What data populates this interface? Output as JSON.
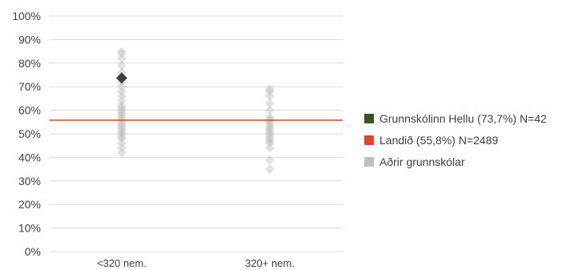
{
  "chart_data": {
    "type": "scatter",
    "categories": [
      "<320 nem.",
      "320+ nem."
    ],
    "yticks": [
      "0%",
      "10%",
      "20%",
      "30%",
      "40%",
      "50%",
      "60%",
      "70%",
      "80%",
      "90%",
      "100%"
    ],
    "ylim": [
      0,
      100
    ],
    "grid": true,
    "legend_position": "right",
    "reference_line": {
      "value": 55.8,
      "color": "#e0452a"
    },
    "highlight": {
      "category": "<320 nem.",
      "value": 73.7,
      "color": "#404040"
    },
    "series": [
      {
        "category": "<320 nem.",
        "values": [
          85,
          84,
          82,
          79,
          76,
          74,
          72,
          70,
          68,
          66,
          64,
          62,
          61,
          60,
          59,
          58,
          57,
          56,
          55,
          54,
          53,
          52,
          51,
          50,
          49,
          48,
          46,
          44,
          42
        ]
      },
      {
        "category": "320+ nem.",
        "values": [
          69,
          68,
          66,
          63,
          60,
          57,
          56,
          55,
          54,
          53,
          52,
          51,
          50,
          49,
          48,
          47,
          46,
          44,
          39,
          35
        ]
      }
    ],
    "legend": [
      {
        "label": "Grunnskólinn Hellu (73,7%) N=42",
        "color": "#375623"
      },
      {
        "label": "Landið (55,8%) N=2489",
        "color": "#e0452a"
      },
      {
        "label": "Aðrir grunnskólar",
        "color": "#bfbfbf"
      }
    ]
  }
}
